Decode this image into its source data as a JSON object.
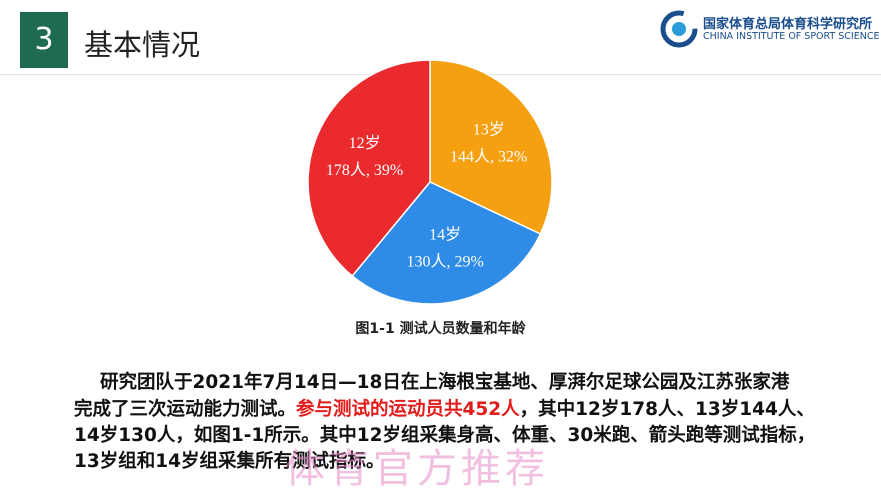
{
  "header": {
    "number": "3",
    "title": "基本情况",
    "org_cn": "国家体育总局体育科学研究所",
    "org_en": "CHINA INSTITUTE OF SPORT SCIENCE"
  },
  "chart_data": {
    "type": "pie",
    "caption": "图1-1 测试人员数量和年龄",
    "categories": [
      "13岁",
      "14岁",
      "12岁"
    ],
    "values": [
      32,
      29,
      39
    ],
    "value_labels": [
      "144人, 32%",
      "130人, 29%",
      "178人, 39%"
    ],
    "colors": [
      "#f5a010",
      "#2f8ce6",
      "#ea2a2c"
    ]
  },
  "paragraph": [
    "研究团队于2021年7月14日—18日在上海根宝基地、厚湃尔足球公园及江苏张家港",
    [
      "完成了三次运动能力测试。",
      "参与测试的运动员共452人",
      "，其中12岁178人、13岁144人、"
    ],
    "14岁130人，如图1-1所示。其中12岁组采集身高、体重、30米跑、箭头跑等测试指标，",
    "13岁组和14岁组采集所有测试指标。"
  ],
  "watermark": "体育官方推荐"
}
